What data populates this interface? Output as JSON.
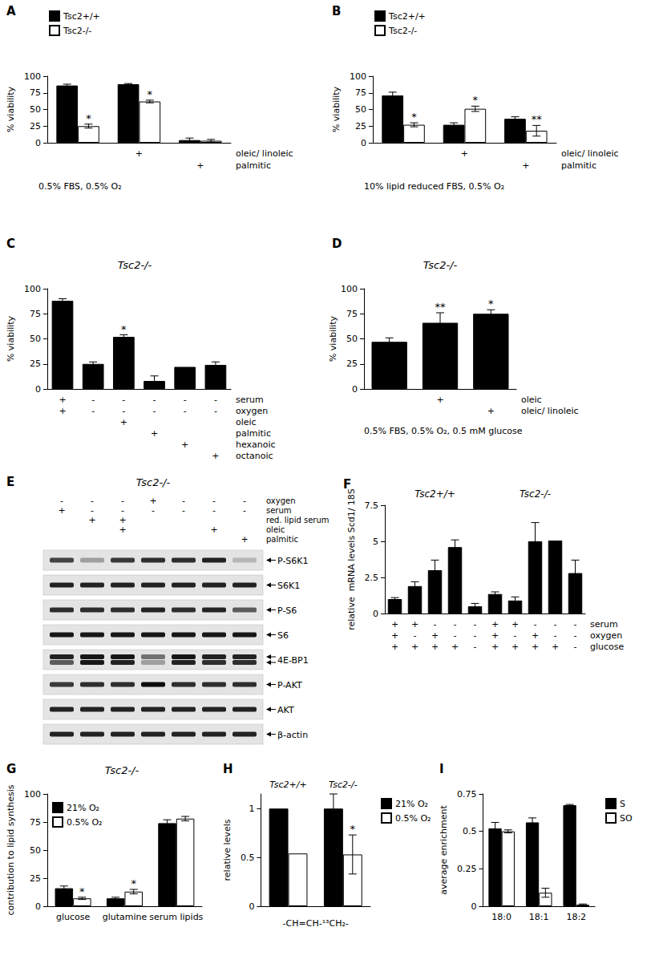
{
  "chart_data": [
    {
      "panel": "A",
      "type": "bar",
      "categories": [
        null,
        null,
        null
      ],
      "series": [
        {
          "name": "Tsc2+/+",
          "color": "#000000",
          "values": [
            86,
            88,
            4
          ],
          "errors": [
            2,
            1,
            3
          ],
          "stars": [
            null,
            null,
            null
          ]
        },
        {
          "name": "Tsc2-/-",
          "color": "#ffffff",
          "values": [
            25,
            62,
            3
          ],
          "errors": [
            3,
            2,
            2
          ],
          "stars": [
            "*",
            "*",
            null
          ]
        }
      ],
      "conditions": [
        {
          "label": "oleic/ linoleic",
          "marks": [
            null,
            "+",
            null
          ]
        },
        {
          "label": "palmitic",
          "marks": [
            null,
            null,
            "+"
          ]
        }
      ],
      "caption": "0.5% FBS, 0.5% O₂",
      "ylabel": "% viability",
      "ylim": [
        0,
        100
      ],
      "yticks": [
        0,
        25,
        50,
        75,
        100
      ],
      "grid": false,
      "legend": "upper left"
    },
    {
      "panel": "B",
      "type": "bar",
      "categories": [
        null,
        null,
        null
      ],
      "series": [
        {
          "name": "Tsc2+/+",
          "color": "#000000",
          "values": [
            71,
            27,
            36
          ],
          "errors": [
            5,
            3,
            3
          ],
          "stars": [
            null,
            null,
            null
          ]
        },
        {
          "name": "Tsc2-/-",
          "color": "#ffffff",
          "values": [
            27,
            51,
            18
          ],
          "errors": [
            3,
            4,
            8
          ],
          "stars": [
            "*",
            "*",
            "**"
          ]
        }
      ],
      "conditions": [
        {
          "label": "oleic/ linoleic",
          "marks": [
            null,
            "+",
            null
          ]
        },
        {
          "label": "palmitic",
          "marks": [
            null,
            null,
            "+"
          ]
        }
      ],
      "caption": "10% lipid reduced FBS, 0.5% O₂",
      "ylabel": "% viability",
      "ylim": [
        0,
        100
      ],
      "yticks": [
        0,
        25,
        50,
        75,
        100
      ],
      "grid": false,
      "legend": "upper left"
    },
    {
      "panel": "C",
      "type": "bar",
      "title": "Tsc2-/-",
      "categories": [
        null,
        null,
        null,
        null,
        null,
        null
      ],
      "values": [
        88,
        25,
        52,
        8,
        22,
        24
      ],
      "errors": [
        2,
        2,
        2,
        5,
        0,
        3
      ],
      "stars": [
        null,
        null,
        "*",
        null,
        null,
        null
      ],
      "color": "#000000",
      "conditions": [
        {
          "label": "serum",
          "marks": [
            "+",
            "-",
            "-",
            "-",
            "-",
            "-"
          ]
        },
        {
          "label": "oxygen",
          "marks": [
            "+",
            "-",
            "-",
            "-",
            "-",
            "-"
          ]
        },
        {
          "label": "oleic",
          "marks": [
            null,
            null,
            "+",
            null,
            null,
            null
          ]
        },
        {
          "label": "palmitic",
          "marks": [
            null,
            null,
            null,
            "+",
            null,
            null
          ]
        },
        {
          "label": "hexanoic",
          "marks": [
            null,
            null,
            null,
            null,
            "+",
            null
          ]
        },
        {
          "label": "octanoic",
          "marks": [
            null,
            null,
            null,
            null,
            null,
            "+"
          ]
        }
      ],
      "ylabel": "% viability",
      "ylim": [
        0,
        100
      ],
      "yticks": [
        0,
        25,
        50,
        75,
        100
      ],
      "grid": false
    },
    {
      "panel": "D",
      "type": "bar",
      "title": "Tsc2-/-",
      "categories": [
        null,
        null,
        null
      ],
      "values": [
        47,
        66,
        75
      ],
      "errors": [
        4,
        10,
        4
      ],
      "stars": [
        null,
        "**",
        "*"
      ],
      "color": "#000000",
      "conditions": [
        {
          "label": "oleic",
          "marks": [
            null,
            "+",
            null
          ]
        },
        {
          "label": "oleic/ linoleic",
          "marks": [
            null,
            null,
            "+"
          ]
        }
      ],
      "caption": "0.5% FBS, 0.5% O₂, 0.5 mM glucose",
      "ylabel": "% viability",
      "ylim": [
        0,
        100
      ],
      "yticks": [
        0,
        25,
        50,
        75,
        100
      ],
      "grid": false
    },
    {
      "panel": "F",
      "type": "bar",
      "group_labels": [
        "Tsc2+/+",
        "Tsc2-/-"
      ],
      "categories": [
        null,
        null,
        null,
        null,
        null,
        null,
        null,
        null,
        null,
        null
      ],
      "values": [
        1.0,
        1.9,
        3.0,
        4.6,
        0.5,
        1.35,
        0.9,
        5.0,
        5.05,
        2.8
      ],
      "errors": [
        0.1,
        0.3,
        0.7,
        0.5,
        0.2,
        0.15,
        0.25,
        1.3,
        0,
        0.9
      ],
      "color": "#000000",
      "conditions": [
        {
          "label": "serum",
          "marks": [
            "+",
            "+",
            "-",
            "-",
            "-",
            "+",
            "+",
            "-",
            "-",
            "-"
          ]
        },
        {
          "label": "oxygen",
          "marks": [
            "+",
            "-",
            "+",
            "-",
            "-",
            "+",
            "-",
            "+",
            "-",
            "-"
          ]
        },
        {
          "label": "glucose",
          "marks": [
            "+",
            "+",
            "+",
            "+",
            "-",
            "+",
            "+",
            "+",
            "+",
            "-"
          ]
        }
      ],
      "ylabel": "relative  mRNA levels Scd1/ 18S",
      "ylim": [
        0,
        7.5
      ],
      "yticks": [
        0,
        2.5,
        5,
        7.5
      ],
      "grid": false
    },
    {
      "panel": "G",
      "type": "bar",
      "title": "Tsc2-/-",
      "categories": [
        "glucose",
        "glutamine",
        "serum lipids"
      ],
      "series": [
        {
          "name": "21% O₂",
          "color": "#000000",
          "values": [
            16,
            7,
            74
          ],
          "errors": [
            2,
            1,
            3
          ],
          "stars": [
            null,
            null,
            null
          ]
        },
        {
          "name": "0.5% O₂",
          "color": "#ffffff",
          "values": [
            7,
            13,
            78
          ],
          "errors": [
            1,
            2,
            2
          ],
          "stars": [
            "*",
            "*",
            null
          ]
        }
      ],
      "ylabel": "contribution to lipid synthesis",
      "ylim": [
        0,
        100
      ],
      "yticks": [
        0,
        25,
        50,
        75,
        100
      ],
      "grid": false,
      "legend": "upper left"
    },
    {
      "panel": "H",
      "type": "bar",
      "categories": [
        "Tsc2+/+",
        "Tsc2-/-"
      ],
      "series": [
        {
          "name": "21% O₂",
          "color": "#000000",
          "values": [
            1,
            1
          ],
          "errors": [
            0,
            0.15
          ],
          "stars": [
            null,
            null
          ]
        },
        {
          "name": "0.5% O₂",
          "color": "#ffffff",
          "values": [
            0.54,
            0.53
          ],
          "errors": [
            0,
            0.2
          ],
          "stars": [
            null,
            "*"
          ]
        }
      ],
      "xlabel": "-CH=CH-¹³CH₂-",
      "ylabel": "relative levels",
      "ylim": [
        0,
        1.15
      ],
      "yticks": [
        0,
        0.5,
        1
      ],
      "grid": false,
      "legend": "right"
    },
    {
      "panel": "I",
      "type": "bar",
      "categories": [
        "18:0",
        "18:1",
        "18:2"
      ],
      "series": [
        {
          "name": "S",
          "color": "#000000",
          "values": [
            0.52,
            0.56,
            0.675
          ],
          "errors": [
            0.04,
            0.03,
            0.005
          ]
        },
        {
          "name": "SO",
          "color": "#ffffff",
          "values": [
            0.5,
            0.09,
            0.01
          ],
          "errors": [
            0.01,
            0.03,
            0.005
          ]
        }
      ],
      "ylabel": "average enrichment",
      "ylim": [
        0,
        0.75
      ],
      "yticks": [
        0,
        0.25,
        0.5,
        0.75
      ],
      "grid": false,
      "legend": "right"
    }
  ],
  "blot": {
    "panel": "E",
    "title": "Tsc2-/-",
    "conditions": [
      {
        "label": "oxygen",
        "marks": [
          "-",
          "-",
          "-",
          "+",
          "-",
          "-",
          "-"
        ]
      },
      {
        "label": "serum",
        "marks": [
          "+",
          "-",
          "-",
          "-",
          "-",
          "-",
          "-"
        ]
      },
      {
        "label": "red. lipid serum",
        "marks": [
          null,
          "+",
          "+",
          null,
          null,
          null,
          null
        ]
      },
      {
        "label": "oleic",
        "marks": [
          null,
          null,
          "+",
          null,
          null,
          "+",
          null
        ]
      },
      {
        "label": "palmitic",
        "marks": [
          null,
          null,
          null,
          null,
          null,
          null,
          "+"
        ]
      }
    ],
    "rows": [
      {
        "label": "P-S6K1",
        "bands": [
          [
            0.7,
            0.3,
            0.75,
            0.8,
            0.8,
            0.85,
            0.2
          ]
        ]
      },
      {
        "label": "S6K1",
        "bands": [
          [
            0.85,
            0.85,
            0.85,
            0.85,
            0.85,
            0.85,
            0.85
          ]
        ]
      },
      {
        "label": "P-S6",
        "bands": [
          [
            0.8,
            0.8,
            0.8,
            0.85,
            0.8,
            0.85,
            0.6
          ]
        ]
      },
      {
        "label": "S6",
        "bands": [
          [
            0.9,
            0.9,
            0.9,
            0.9,
            0.9,
            0.9,
            0.9
          ]
        ]
      },
      {
        "label": "4E-BP1",
        "bands": [
          [
            0.85,
            0.9,
            0.9,
            0.5,
            0.9,
            0.85,
            0.85
          ],
          [
            0.6,
            0.9,
            0.85,
            0.3,
            0.85,
            0.8,
            0.8
          ]
        ]
      },
      {
        "label": "P-AKT",
        "bands": [
          [
            0.75,
            0.8,
            0.8,
            0.95,
            0.8,
            0.8,
            0.8
          ]
        ]
      },
      {
        "label": "AKT",
        "bands": [
          [
            0.85,
            0.85,
            0.85,
            0.85,
            0.85,
            0.85,
            0.85
          ]
        ]
      },
      {
        "label": "β-actin",
        "bands": [
          [
            0.85,
            0.85,
            0.85,
            0.85,
            0.85,
            0.85,
            0.85
          ]
        ]
      }
    ]
  }
}
